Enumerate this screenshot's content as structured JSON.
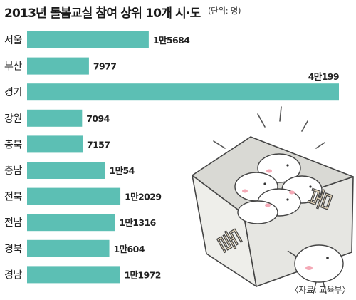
{
  "title": "2013년 돌봄교실 참여 상위 10개 시·도",
  "unit": "(단위: 명)",
  "source": "〈자료: 교육부〉",
  "colors": {
    "bar": "#5cbfb4",
    "text": "#222222"
  },
  "illustration": {
    "box_label_left": "돌",
    "box_label_right": "봄"
  },
  "chart_data": {
    "type": "bar",
    "orientation": "horizontal",
    "title": "2013년 돌봄교실 참여 상위 10개 시·도",
    "unit": "명",
    "categories": [
      "서울",
      "부산",
      "경기",
      "강원",
      "충북",
      "충남",
      "전북",
      "전남",
      "경북",
      "경남"
    ],
    "values": [
      15684,
      7977,
      40199,
      7094,
      7157,
      10054,
      12029,
      11316,
      10604,
      11972
    ],
    "value_labels": [
      "1만5684",
      "7977",
      "4만199",
      "7094",
      "7157",
      "1만54",
      "1만2029",
      "1만1316",
      "1만604",
      "1만1972"
    ],
    "grid": false
  }
}
